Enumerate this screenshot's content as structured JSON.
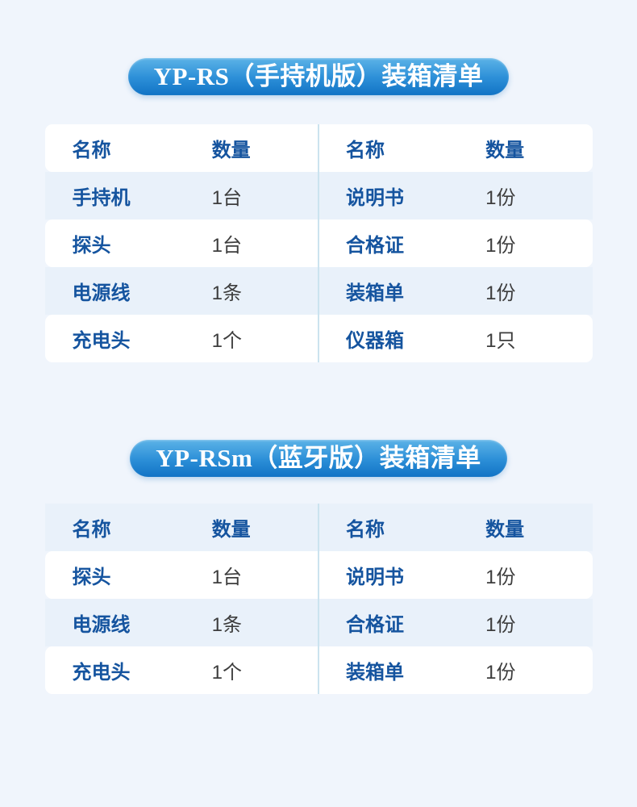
{
  "colors": {
    "page_bg": "#f0f5fc",
    "stripe_bg": "#e9f1fa",
    "row_white": "#ffffff",
    "name_text": "#15549f",
    "qty_text": "#3d3d3d",
    "divider": "#cbe3ef",
    "pill_gradient_top": "#5cb3e7",
    "pill_gradient_mid": "#2d90d8",
    "pill_gradient_bottom": "#1173c5",
    "pill_text": "#ffffff"
  },
  "sections": [
    {
      "title": "YP-RS（手持机版）装箱清单",
      "header": {
        "name": "名称",
        "qty": "数量"
      },
      "header_bg": "white",
      "left_rows": [
        {
          "name": "手持机",
          "qty": "1台"
        },
        {
          "name": "探头",
          "qty": "1台"
        },
        {
          "name": "电源线",
          "qty": "1条"
        },
        {
          "name": "充电头",
          "qty": "1个"
        }
      ],
      "right_rows": [
        {
          "name": "说明书",
          "qty": "1份"
        },
        {
          "name": "合格证",
          "qty": "1份"
        },
        {
          "name": "装箱单",
          "qty": "1份"
        },
        {
          "name": "仪器箱",
          "qty": "1只"
        }
      ]
    },
    {
      "title": "YP-RSm（蓝牙版）装箱清单",
      "header": {
        "name": "名称",
        "qty": "数量"
      },
      "header_bg": "stripe",
      "left_rows": [
        {
          "name": "探头",
          "qty": "1台"
        },
        {
          "name": "电源线",
          "qty": "1条"
        },
        {
          "name": "充电头",
          "qty": "1个"
        }
      ],
      "right_rows": [
        {
          "name": "说明书",
          "qty": "1份"
        },
        {
          "name": "合格证",
          "qty": "1份"
        },
        {
          "name": "装箱单",
          "qty": "1份"
        }
      ]
    }
  ]
}
